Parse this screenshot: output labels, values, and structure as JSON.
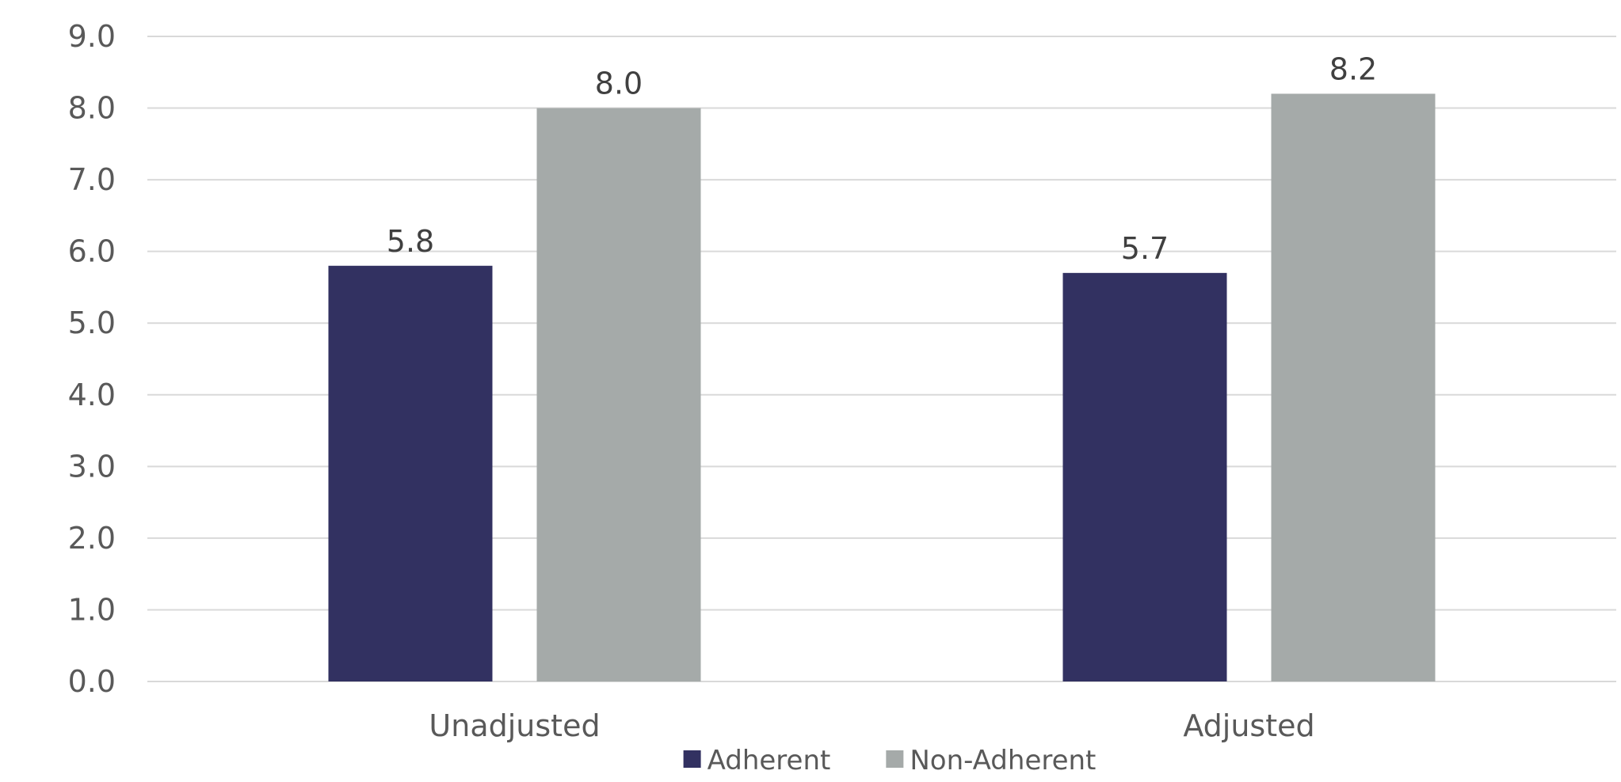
{
  "chart_data": {
    "type": "bar",
    "categories": [
      "Unadjusted",
      "Adjusted"
    ],
    "series": [
      {
        "name": "Adherent",
        "values": [
          5.8,
          5.7
        ],
        "labels": [
          "5.8",
          "5.7"
        ],
        "color": "#323161"
      },
      {
        "name": "Non-Adherent",
        "values": [
          8.0,
          8.2
        ],
        "labels": [
          "8.0",
          "8.2"
        ],
        "color": "#a5aaa9"
      }
    ],
    "title": "",
    "xlabel": "",
    "ylabel": "",
    "ylim": [
      0,
      9
    ],
    "yticks": [
      "0.0",
      "1.0",
      "2.0",
      "3.0",
      "4.0",
      "5.0",
      "6.0",
      "7.0",
      "8.0",
      "9.0"
    ],
    "grid": true,
    "legend": "bottom"
  }
}
